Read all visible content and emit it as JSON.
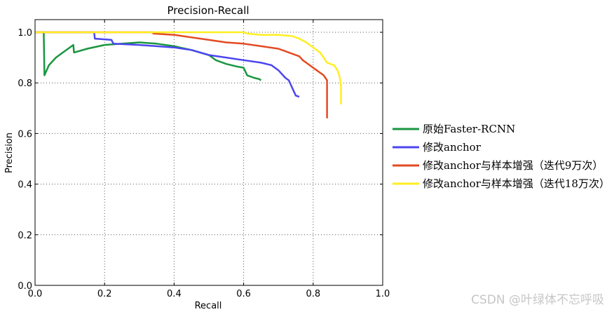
{
  "chart_data": {
    "type": "line",
    "title": "Precision-Recall",
    "xlabel": "Recall",
    "ylabel": "Precision",
    "xlim": [
      0.0,
      1.0
    ],
    "ylim": [
      0.0,
      1.05
    ],
    "xticks": [
      "0.0",
      "0.2",
      "0.4",
      "0.6",
      "0.8",
      "1.0"
    ],
    "yticks": [
      "0.0",
      "0.2",
      "0.4",
      "0.6",
      "0.8",
      "1.0"
    ],
    "grid": true,
    "legend_position": "right",
    "series": [
      {
        "name": "原始Faster-RCNN",
        "color": "#1a9641",
        "points": [
          [
            0.0,
            1.0
          ],
          [
            0.025,
            1.0
          ],
          [
            0.027,
            0.83
          ],
          [
            0.04,
            0.87
          ],
          [
            0.06,
            0.9
          ],
          [
            0.08,
            0.92
          ],
          [
            0.1,
            0.94
          ],
          [
            0.11,
            0.95
          ],
          [
            0.112,
            0.92
          ],
          [
            0.15,
            0.935
          ],
          [
            0.2,
            0.95
          ],
          [
            0.25,
            0.955
          ],
          [
            0.3,
            0.96
          ],
          [
            0.35,
            0.955
          ],
          [
            0.4,
            0.945
          ],
          [
            0.45,
            0.93
          ],
          [
            0.5,
            0.91
          ],
          [
            0.52,
            0.89
          ],
          [
            0.55,
            0.875
          ],
          [
            0.58,
            0.865
          ],
          [
            0.6,
            0.86
          ],
          [
            0.61,
            0.83
          ],
          [
            0.63,
            0.82
          ],
          [
            0.645,
            0.815
          ],
          [
            0.65,
            0.81
          ]
        ]
      },
      {
        "name": "修改anchor",
        "color": "#4b46ee",
        "points": [
          [
            0.0,
            1.0
          ],
          [
            0.17,
            1.0
          ],
          [
            0.172,
            0.975
          ],
          [
            0.22,
            0.97
          ],
          [
            0.225,
            0.955
          ],
          [
            0.3,
            0.95
          ],
          [
            0.35,
            0.945
          ],
          [
            0.4,
            0.94
          ],
          [
            0.45,
            0.93
          ],
          [
            0.5,
            0.91
          ],
          [
            0.55,
            0.9
          ],
          [
            0.6,
            0.89
          ],
          [
            0.65,
            0.88
          ],
          [
            0.68,
            0.87
          ],
          [
            0.7,
            0.85
          ],
          [
            0.72,
            0.82
          ],
          [
            0.73,
            0.81
          ],
          [
            0.74,
            0.78
          ],
          [
            0.75,
            0.75
          ],
          [
            0.76,
            0.745
          ]
        ]
      },
      {
        "name": "修改anchor与样本增强（迭代9万次）",
        "color": "#e34a22",
        "points": [
          [
            0.0,
            1.0
          ],
          [
            0.34,
            1.0
          ],
          [
            0.34,
            0.995
          ],
          [
            0.4,
            0.99
          ],
          [
            0.45,
            0.98
          ],
          [
            0.5,
            0.97
          ],
          [
            0.55,
            0.96
          ],
          [
            0.6,
            0.955
          ],
          [
            0.65,
            0.945
          ],
          [
            0.7,
            0.935
          ],
          [
            0.72,
            0.925
          ],
          [
            0.74,
            0.915
          ],
          [
            0.76,
            0.905
          ],
          [
            0.77,
            0.89
          ],
          [
            0.78,
            0.88
          ],
          [
            0.79,
            0.87
          ],
          [
            0.8,
            0.86
          ],
          [
            0.81,
            0.85
          ],
          [
            0.82,
            0.84
          ],
          [
            0.83,
            0.83
          ],
          [
            0.835,
            0.82
          ],
          [
            0.84,
            0.81
          ],
          [
            0.84,
            0.66
          ]
        ]
      },
      {
        "name": "修改anchor与样本增强（迭代18万次）",
        "color": "#ffee22",
        "points": [
          [
            0.0,
            1.0
          ],
          [
            0.6,
            1.0
          ],
          [
            0.61,
            0.995
          ],
          [
            0.65,
            0.99
          ],
          [
            0.7,
            0.99
          ],
          [
            0.74,
            0.985
          ],
          [
            0.76,
            0.975
          ],
          [
            0.78,
            0.96
          ],
          [
            0.8,
            0.94
          ],
          [
            0.81,
            0.93
          ],
          [
            0.82,
            0.92
          ],
          [
            0.83,
            0.9
          ],
          [
            0.84,
            0.88
          ],
          [
            0.86,
            0.87
          ],
          [
            0.87,
            0.85
          ],
          [
            0.875,
            0.83
          ],
          [
            0.88,
            0.79
          ],
          [
            0.88,
            0.715
          ]
        ]
      }
    ]
  },
  "watermark": "CSDN @叶绿体不忘呼吸"
}
